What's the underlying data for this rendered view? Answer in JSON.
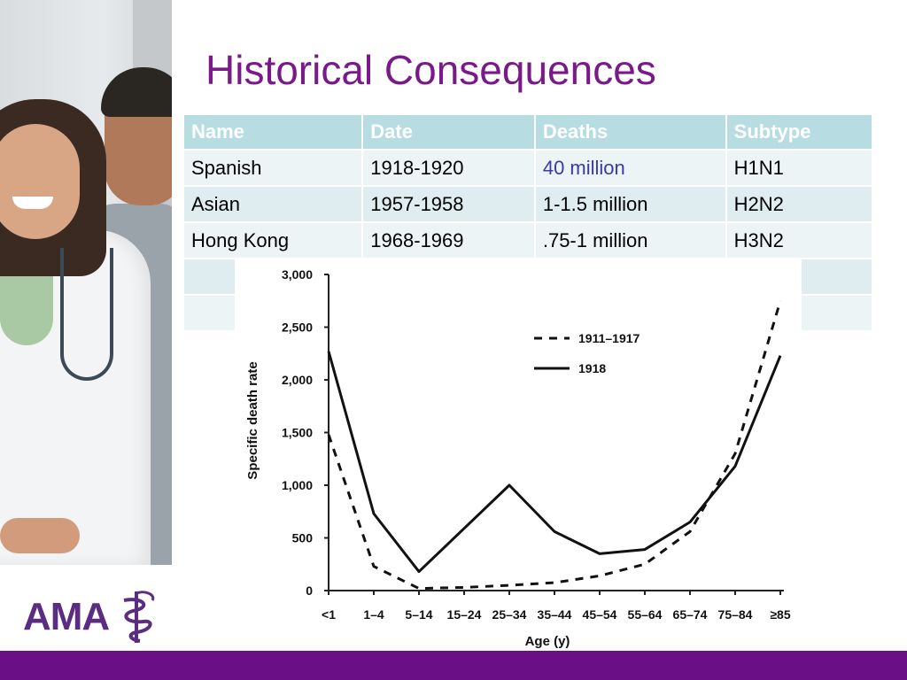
{
  "slide": {
    "title": "Historical Consequences",
    "logo_text": "AMA",
    "colors": {
      "title": "#7a1a8a",
      "footer_bar": "#6a0f86",
      "table_header": "#b7dde3",
      "logo": "#5a2d82"
    }
  },
  "table": {
    "headers": [
      "Name",
      "Date",
      "Deaths",
      "Subtype"
    ],
    "rows": [
      [
        "Spanish",
        "1918-1920",
        "40 million",
        "H1N1"
      ],
      [
        "Asian",
        "1957-1958",
        "1-1.5 million",
        "H2N2"
      ],
      [
        "Hong Kong",
        "1968-1969",
        ".75-1 million",
        "H3N2"
      ]
    ]
  },
  "chart_data": {
    "type": "line",
    "xlabel": "Age (y)",
    "ylabel": "Specific death rate",
    "categories": [
      "<1",
      "1–4",
      "5–14",
      "15–24",
      "25–34",
      "35–44",
      "45–54",
      "55–64",
      "65–74",
      "75–84",
      "≥85"
    ],
    "ylim": [
      0,
      3000
    ],
    "yticks": [
      "0",
      "500",
      "1,000",
      "1,500",
      "2,000",
      "2,500",
      "3,000"
    ],
    "legend_position": "top-right",
    "series": [
      {
        "name": "1911–1917",
        "style": "dashed",
        "values": [
          1480,
          230,
          20,
          30,
          50,
          75,
          140,
          250,
          560,
          1300,
          2750
        ]
      },
      {
        "name": "1918",
        "style": "solid",
        "values": [
          2270,
          730,
          180,
          590,
          1000,
          560,
          350,
          390,
          650,
          1180,
          2230
        ]
      }
    ]
  }
}
